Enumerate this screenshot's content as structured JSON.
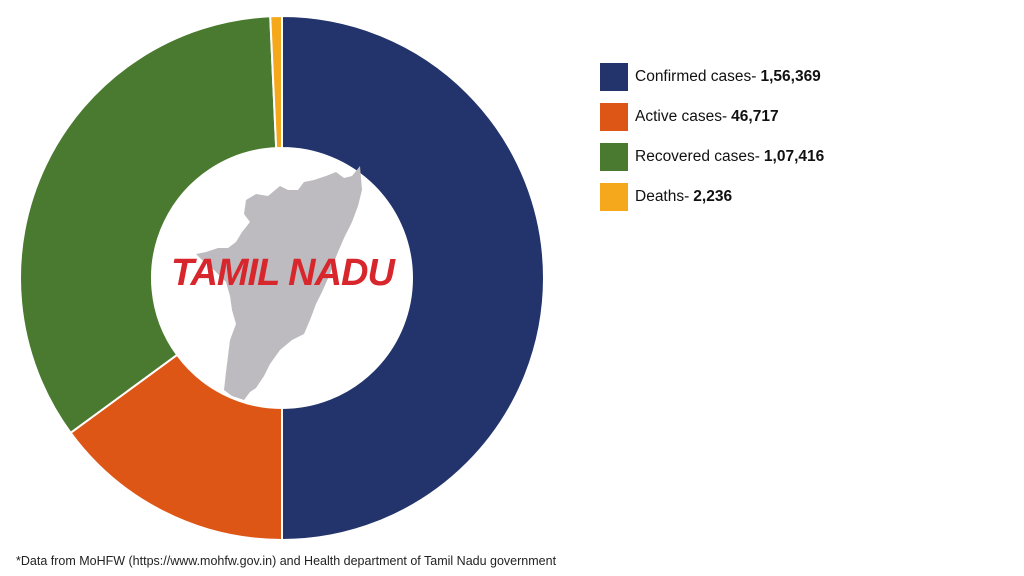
{
  "chart_data": {
    "type": "pie",
    "subtype": "donut",
    "title": "TAMIL NADU",
    "categories": [
      "Confirmed cases",
      "Active cases",
      "Recovered cases",
      "Deaths"
    ],
    "values": [
      156369,
      46717,
      107416,
      2236
    ],
    "value_labels": [
      "1,56,369",
      "46,717",
      "1,07,416",
      "2,236"
    ],
    "colors": [
      "#22346b",
      "#dd5615",
      "#4a7a2f",
      "#f5a81c"
    ],
    "legend_position": "right",
    "start_angle_deg": 0,
    "direction": "clockwise"
  },
  "legend": {
    "items": [
      {
        "label": "Confirmed cases-",
        "value": "1,56,369",
        "color": "#22346b"
      },
      {
        "label": "Active cases-",
        "value": "46,717",
        "color": "#dd5615"
      },
      {
        "label": "Recovered cases-",
        "value": "1,07,416",
        "color": "#4a7a2f"
      },
      {
        "label": "Deaths-",
        "value": "2,236",
        "color": "#f5a81c"
      }
    ]
  },
  "center": {
    "title": "TAMIL NADU",
    "map_color": "#bdbbbf"
  },
  "footnote": "*Data from MoHFW (https://www.mohfw.gov.in) and Health department of Tamil Nadu government"
}
